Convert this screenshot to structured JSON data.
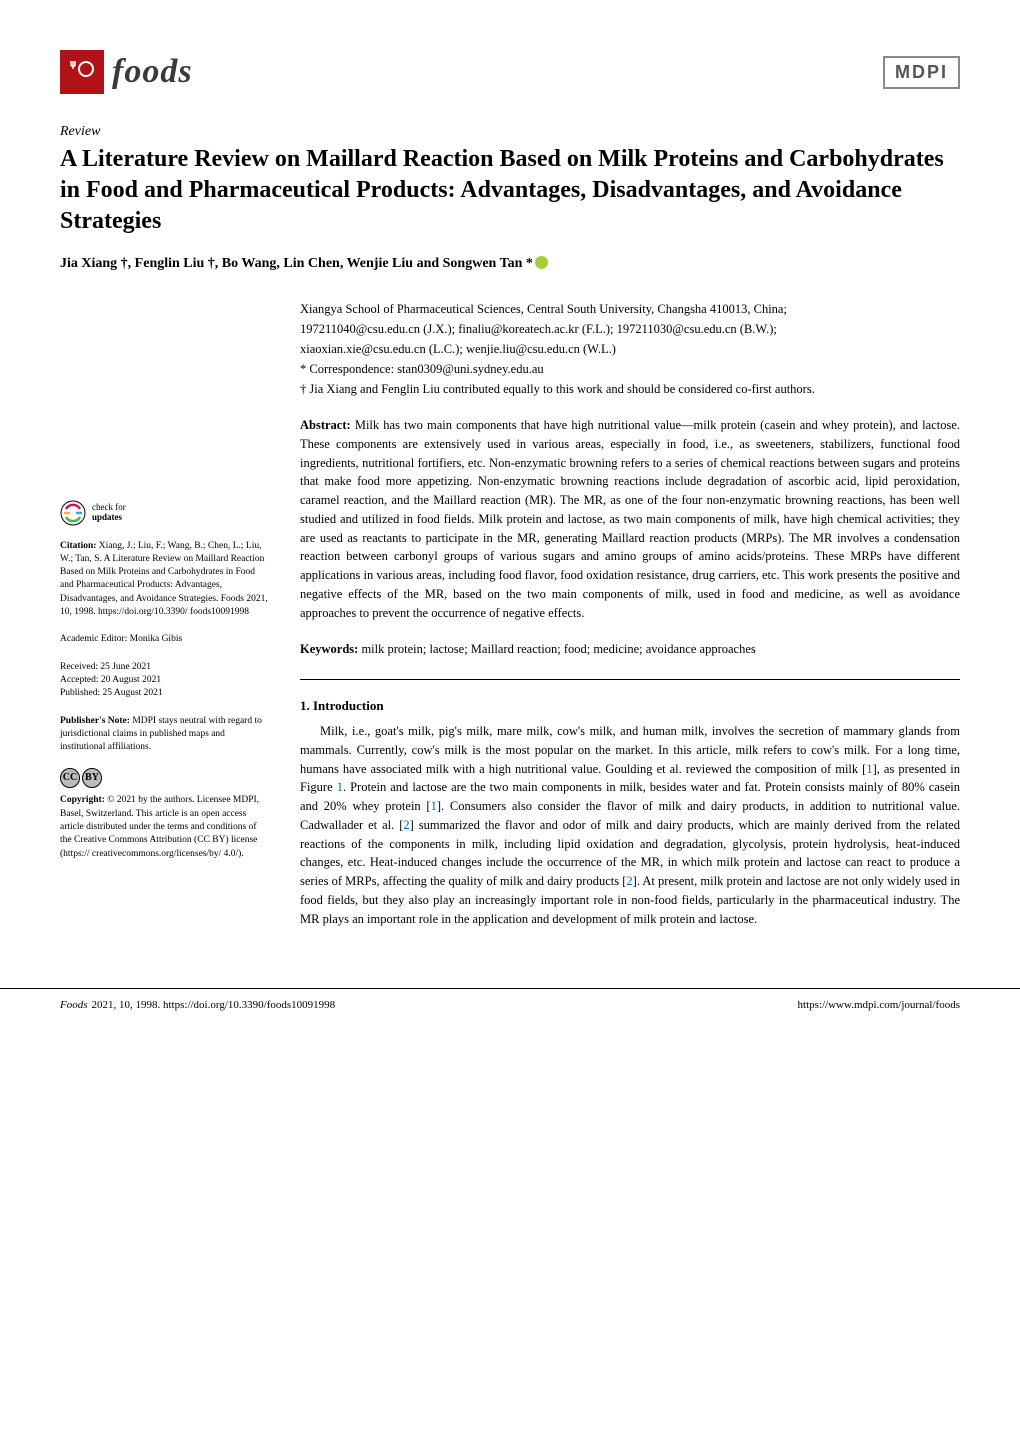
{
  "journal": {
    "name": "foods",
    "logo_bg": "#b01217",
    "logo_icon": "🍴"
  },
  "publisher_logo": "MDPI",
  "article_type": "Review",
  "title": "A Literature Review on Maillard Reaction Based on Milk Proteins and Carbohydrates in Food and Pharmaceutical Products: Advantages, Disadvantages, and Avoidance Strategies",
  "authors": "Jia Xiang †, Fenglin Liu †, Bo Wang, Lin Chen, Wenjie Liu and Songwen Tan *",
  "affiliation": {
    "institution": "Xiangya School of Pharmaceutical Sciences, Central South University, Changsha 410013, China;",
    "emails": "197211040@csu.edu.cn (J.X.); finaliu@koreatech.ac.kr (F.L.); 197211030@csu.edu.cn (B.W.);",
    "emails2": "xiaoxian.xie@csu.edu.cn (L.C.); wenjie.liu@csu.edu.cn (W.L.)",
    "correspondence": "* Correspondence: stan0309@uni.sydney.edu.au",
    "contrib": "† Jia Xiang and Fenglin Liu contributed equally to this work and should be considered co-first authors."
  },
  "abstract": {
    "label": "Abstract:",
    "text": "Milk has two main components that have high nutritional value—milk protein (casein and whey protein), and lactose. These components are extensively used in various areas, especially in food, i.e., as sweeteners, stabilizers, functional food ingredients, nutritional fortifiers, etc. Non-enzymatic browning refers to a series of chemical reactions between sugars and proteins that make food more appetizing. Non-enzymatic browning reactions include degradation of ascorbic acid, lipid peroxidation, caramel reaction, and the Maillard reaction (MR). The MR, as one of the four non-enzymatic browning reactions, has been well studied and utilized in food fields. Milk protein and lactose, as two main components of milk, have high chemical activities; they are used as reactants to participate in the MR, generating Maillard reaction products (MRPs). The MR involves a condensation reaction between carbonyl groups of various sugars and amino groups of amino acids/proteins. These MRPs have different applications in various areas, including food flavor, food oxidation resistance, drug carriers, etc. This work presents the positive and negative effects of the MR, based on the two main components of milk, used in food and medicine, as well as avoidance approaches to prevent the occurrence of negative effects."
  },
  "keywords": {
    "label": "Keywords:",
    "text": "milk protein; lactose; Maillard reaction; food; medicine; avoidance approaches"
  },
  "section1": {
    "heading": "1. Introduction",
    "body": "Milk, i.e., goat's milk, pig's milk, mare milk, cow's milk, and human milk, involves the secretion of mammary glands from mammals. Currently, cow's milk is the most popular on the market. In this article, milk refers to cow's milk. For a long time, humans have associated milk with a high nutritional value. Goulding et al. reviewed the composition of milk [1], as presented in Figure 1. Protein and lactose are the two main components in milk, besides water and fat. Protein consists mainly of 80% casein and 20% whey protein [1]. Consumers also consider the flavor of milk and dairy products, in addition to nutritional value. Cadwallader et al. [2] summarized the flavor and odor of milk and dairy products, which are mainly derived from the related reactions of the components in milk, including lipid oxidation and degradation, glycolysis, protein hydrolysis, heat-induced changes, etc. Heat-induced changes include the occurrence of the MR, in which milk protein and lactose can react to produce a series of MRPs, affecting the quality of milk and dairy products [2]. At present, milk protein and lactose are not only widely used in food fields, but they also play an increasingly important role in non-food fields, particularly in the pharmaceutical industry. The MR plays an important role in the application and development of milk protein and lactose."
  },
  "sidebar": {
    "check_updates_line1": "check for",
    "check_updates_line2": "updates",
    "citation_label": "Citation:",
    "citation": "Xiang, J.; Liu, F.; Wang, B.; Chen, L.; Liu, W.; Tan, S. A Literature Review on Maillard Reaction Based on Milk Proteins and Carbohydrates in Food and Pharmaceutical Products: Advantages, Disadvantages, and Avoidance Strategies. Foods 2021, 10, 1998. https://doi.org/10.3390/ foods10091998",
    "editor_label": "Academic Editor:",
    "editor": "Monika Gibis",
    "received_label": "Received:",
    "received": "25 June 2021",
    "accepted_label": "Accepted:",
    "accepted": "20 August 2021",
    "published_label": "Published:",
    "published": "25 August 2021",
    "publisher_note_label": "Publisher's Note:",
    "publisher_note": "MDPI stays neutral with regard to jurisdictional claims in published maps and institutional affiliations.",
    "copyright_label": "Copyright:",
    "copyright": "© 2021 by the authors. Licensee MDPI, Basel, Switzerland. This article is an open access article distributed under the terms and conditions of the Creative Commons Attribution (CC BY) license (https:// creativecommons.org/licenses/by/ 4.0/)."
  },
  "footer": {
    "left_italic": "Foods",
    "left_rest": "2021, 10, 1998. https://doi.org/10.3390/foods10091998",
    "right": "https://www.mdpi.com/journal/foods"
  },
  "colors": {
    "logo_bg": "#b01217",
    "ref_link": "#0066cc",
    "orcid": "#a6ce39",
    "text": "#000000",
    "background": "#ffffff"
  },
  "typography": {
    "body_font": "Palatino Linotype",
    "title_size_pt": 18,
    "body_size_pt": 9.5,
    "sidebar_size_pt": 7
  }
}
